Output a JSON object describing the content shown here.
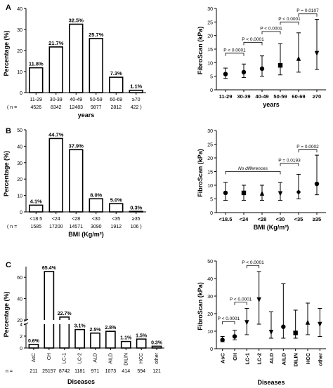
{
  "chart_data": [
    {
      "id": "A-left",
      "panel_letter": "A",
      "type": "bar",
      "ylabel": "Percentage (%)",
      "xlabel": "years",
      "ylim": [
        0,
        40
      ],
      "yticks": [
        0,
        10,
        20,
        30,
        40
      ],
      "n_label": "( n = ",
      "categories": [
        "11-29",
        "30-39",
        "40-49",
        "50-59",
        "60-69",
        "≥70"
      ],
      "n": [
        "4526",
        "8342",
        "12483",
        "9877",
        "2812",
        "422 )"
      ],
      "values": [
        11.8,
        21.7,
        32.5,
        25.7,
        7.3,
        1.1
      ],
      "value_labels": [
        "11.8%",
        "21.7%",
        "32.5%",
        "25.7%",
        "7.3%",
        "1.1%"
      ]
    },
    {
      "id": "A-right",
      "type": "scatter",
      "ylabel": "FibroScan (kPa)",
      "xlabel": "years",
      "ylim": [
        0,
        30
      ],
      "yticks": [
        0,
        5,
        10,
        15,
        20,
        25,
        30
      ],
      "categories": [
        "11-29",
        "30-39",
        "40-49",
        "50-59",
        "60-69",
        "≥70"
      ],
      "median": [
        5.8,
        6.5,
        7.8,
        9.0,
        11.5,
        13.5
      ],
      "low": [
        4.2,
        4.5,
        5.0,
        5.5,
        6.5,
        7.5
      ],
      "high": [
        8.0,
        9.5,
        12.5,
        17.0,
        21.0,
        26.0
      ],
      "markers": [
        "circle",
        "circle",
        "circle",
        "square",
        "triangle",
        "triangle-down"
      ],
      "brackets": [
        {
          "from": 0,
          "to": 1,
          "label": "P < 0.0001",
          "y": 13.5
        },
        {
          "from": 1,
          "to": 2,
          "label": "P < 0.0001",
          "y": 17.5
        },
        {
          "from": 2,
          "to": 3,
          "label": "P < 0.0001",
          "y": 21.5
        },
        {
          "from": 3,
          "to": 4,
          "label": "P < 0.0001",
          "y": 25
        },
        {
          "from": 4,
          "to": 5,
          "label": "P = 0.0107",
          "y": 28
        }
      ]
    },
    {
      "id": "B-left",
      "panel_letter": "B",
      "type": "bar",
      "ylabel": "Percentage (%)",
      "xlabel": "BMI (Kg/m²)",
      "ylim": [
        0,
        50
      ],
      "yticks": [
        0,
        10,
        20,
        30,
        40,
        50
      ],
      "n_label": "( n = ",
      "categories": [
        "<18.5",
        "<24",
        "<28",
        "<30",
        "<35",
        "≥35"
      ],
      "n": [
        "1585",
        "17200",
        "14571",
        "3090",
        "1912",
        "106 )"
      ],
      "values": [
        4.1,
        44.7,
        37.9,
        8.0,
        5.0,
        0.3
      ],
      "value_labels": [
        "4.1%",
        "44.7%",
        "37.9%",
        "8.0%",
        "5.0%",
        "0.3%"
      ]
    },
    {
      "id": "B-right",
      "type": "scatter",
      "ylabel": "FibroScan (kPa)",
      "xlabel": "BMI (Kg/m²)",
      "ylim": [
        0,
        30
      ],
      "yticks": [
        0,
        5,
        10,
        15,
        20,
        25,
        30
      ],
      "categories": [
        "<18.5",
        "<24",
        "<28",
        "<30",
        "<35",
        "≥35"
      ],
      "median": [
        7.2,
        7.2,
        7.0,
        7.0,
        7.5,
        10.5
      ],
      "low": [
        4.5,
        4.5,
        4.5,
        4.5,
        5.0,
        6.5
      ],
      "high": [
        11.0,
        10.0,
        10.0,
        11.0,
        14.0,
        21.0
      ],
      "markers": [
        "circle",
        "square",
        "triangle",
        "triangle-down",
        "diamond",
        "circle"
      ],
      "brackets": [
        {
          "from": 0,
          "to": 3,
          "label": "No differences",
          "y": 15,
          "italic": true
        },
        {
          "from": 3,
          "to": 4,
          "label": "P = 0.0193",
          "y": 18
        },
        {
          "from": 4,
          "to": 5,
          "label": "P = 0.0002",
          "y": 23
        }
      ]
    },
    {
      "id": "C-left",
      "panel_letter": "C",
      "type": "bar",
      "ylabel": "Percentage (%)",
      "xlabel": "Diseases",
      "axis_break": true,
      "upper_ylim": [
        20,
        70
      ],
      "upper_yticks": [
        20,
        40,
        60
      ],
      "lower_ylim": [
        0,
        4
      ],
      "lower_yticks": [
        0,
        2,
        4
      ],
      "n_label": "n = ",
      "categories": [
        "AsC",
        "CH",
        "LC-1",
        "LC-2",
        "ALD",
        "AILD",
        "DILIN",
        "HCC",
        "other"
      ],
      "n": [
        "211",
        "25157",
        "8742",
        "1181",
        "971",
        "1073",
        "414",
        "594",
        "121"
      ],
      "values": [
        0.6,
        65.4,
        22.7,
        3.1,
        2.5,
        2.8,
        1.1,
        1.5,
        0.3
      ],
      "value_labels": [
        "0.6%",
        "65.4%",
        "22.7%",
        "3.1%",
        "2.5%",
        "2.8%",
        "1.1%",
        "1.5%",
        "0.3%"
      ]
    },
    {
      "id": "C-right",
      "type": "scatter",
      "ylabel": "FibroScan (kPa)",
      "xlabel": "Diseases",
      "ylim": [
        0,
        50
      ],
      "yticks": [
        0,
        10,
        20,
        30,
        40,
        50
      ],
      "categories": [
        "AsC",
        "CH",
        "LC-1",
        "LC-2",
        "ALD",
        "AILD",
        "DILIN",
        "HCC",
        "other"
      ],
      "median": [
        5.0,
        7.0,
        15.0,
        28.0,
        9.5,
        12.5,
        9.0,
        15.0,
        14.0
      ],
      "low": [
        4.0,
        5.0,
        8.0,
        14.0,
        6.0,
        6.0,
        6.0,
        8.0,
        7.0
      ],
      "high": [
        7.0,
        10.5,
        23.0,
        44.0,
        21.0,
        37.0,
        22.0,
        26.0,
        23.0
      ],
      "markers": [
        "circle",
        "circle",
        "triangle-down",
        "triangle-down",
        "triangle-down",
        "circle",
        "square",
        "triangle",
        "triangle-down"
      ],
      "brackets": [
        {
          "from": 0,
          "to": 1,
          "label": "P < 0.0001",
          "y": 15.5
        },
        {
          "from": 1,
          "to": 2,
          "label": "P < 0.0001",
          "y": 26.5
        },
        {
          "from": 2,
          "to": 3,
          "label": "P < 0.0001",
          "y": 47.5
        }
      ]
    }
  ]
}
